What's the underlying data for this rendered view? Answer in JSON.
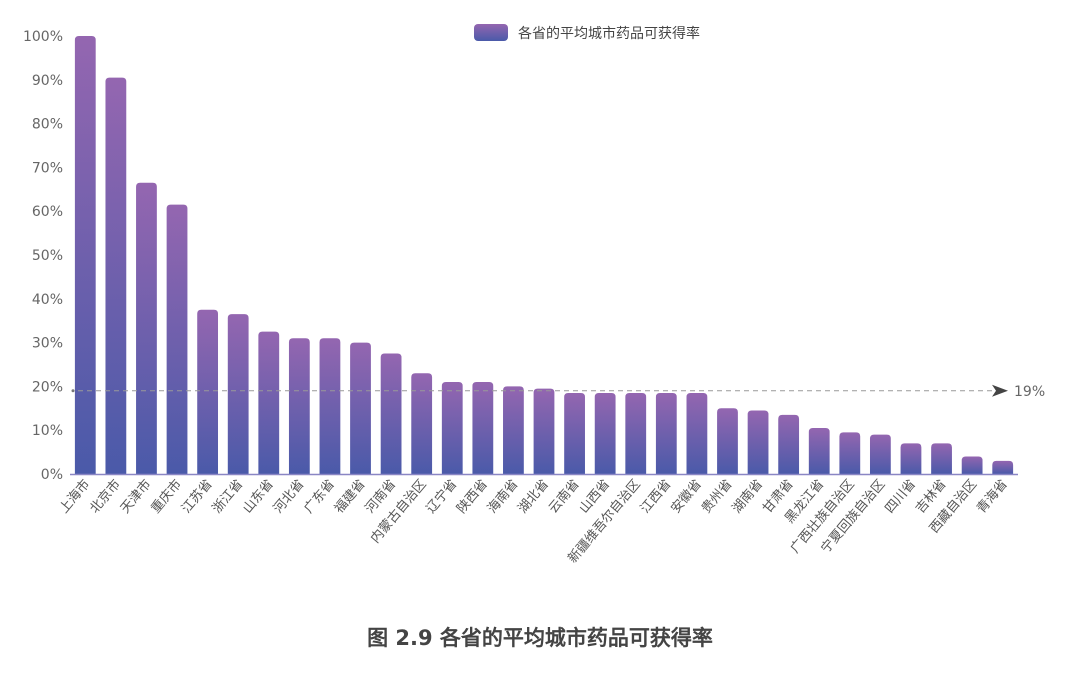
{
  "caption": "图 2.9 各省的平均城市药品可获得率",
  "chart_data": {
    "type": "bar",
    "title": "",
    "xlabel": "",
    "ylabel": "",
    "ylim": [
      0,
      100
    ],
    "yticks": [
      "0%",
      "10%",
      "20%",
      "30%",
      "40%",
      "50%",
      "60%",
      "70%",
      "80%",
      "90%",
      "100%"
    ],
    "legend": {
      "label": "各省的平均城市药品可获得率",
      "position": "top-center"
    },
    "reference_line": {
      "value": 19,
      "label": "19%"
    },
    "grid": false,
    "colors": {
      "bar_top": "#9466b0",
      "bar_bottom": "#4a5aa9",
      "axis": "#8a86c4",
      "reference": "#999999"
    },
    "categories": [
      "上海市",
      "北京市",
      "天津市",
      "重庆市",
      "江苏省",
      "浙江省",
      "山东省",
      "河北省",
      "广东省",
      "福建省",
      "河南省",
      "内蒙古自治区",
      "辽宁省",
      "陕西省",
      "海南省",
      "湖北省",
      "云南省",
      "山西省",
      "新疆维吾尔自治区",
      "江西省",
      "安徽省",
      "贵州省",
      "湖南省",
      "甘肃省",
      "黑龙江省",
      "广西壮族自治区",
      "宁夏回族自治区",
      "四川省",
      "吉林省",
      "西藏自治区",
      "青海省"
    ],
    "values": [
      100,
      90.5,
      66.5,
      61.5,
      37.5,
      36.5,
      32.5,
      31,
      31,
      30,
      27.5,
      23,
      21,
      21,
      20,
      19.5,
      18.5,
      18.5,
      18.5,
      18.5,
      18.5,
      15,
      14.5,
      13.5,
      10.5,
      9.5,
      9,
      7,
      7,
      4,
      3
    ]
  }
}
